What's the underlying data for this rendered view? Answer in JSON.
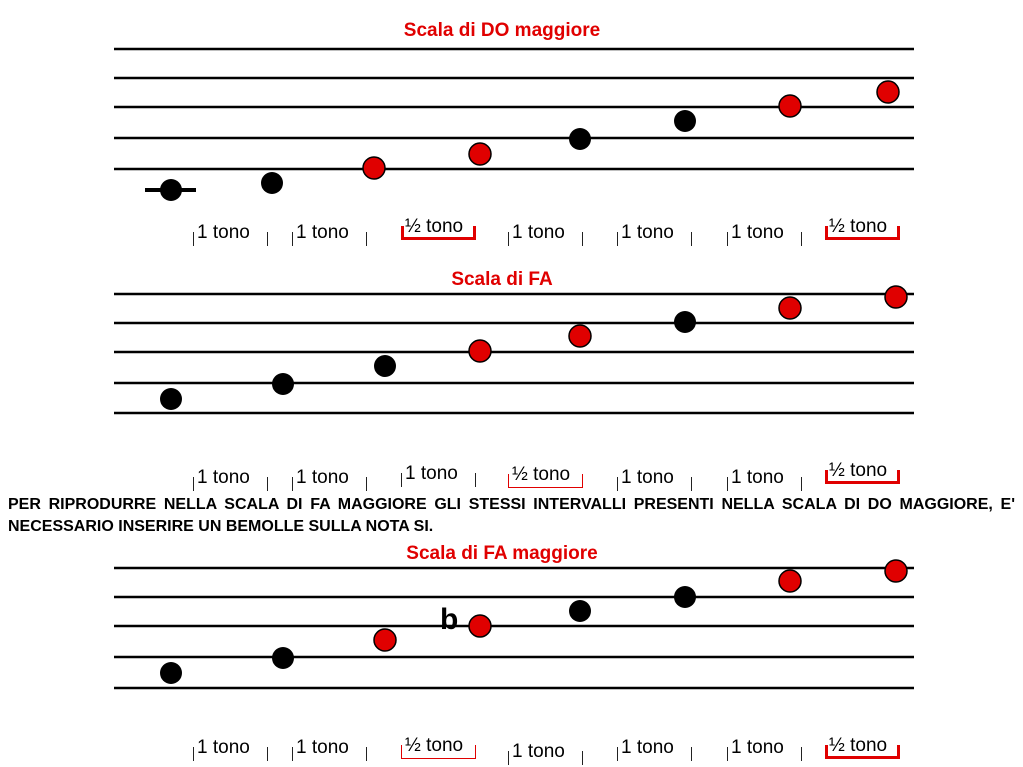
{
  "colors": {
    "accent": "#e00000",
    "note_black": "#000000",
    "note_red": "#e00000"
  },
  "sections": [
    {
      "title": "Scala di DO maggiore",
      "intervals": [
        "1 tono",
        "1 tono",
        "½ tono",
        "1 tono",
        "1 tono",
        "1 tono",
        "½ tono"
      ],
      "interval_kinds": [
        "whole",
        "whole",
        "half",
        "whole",
        "whole",
        "whole",
        "half"
      ]
    },
    {
      "title": "Scala di FA",
      "intervals": [
        "1 tono",
        "1 tono",
        "1 tono",
        "½ tono",
        "1 tono",
        "1 tono",
        "½ tono"
      ],
      "interval_kinds": [
        "whole",
        "whole",
        "whole",
        "half",
        "whole",
        "whole",
        "half"
      ]
    },
    {
      "title": "Scala di FA maggiore",
      "intervals": [
        "1 tono",
        "1 tono",
        "½ tono",
        "1 tono",
        "1 tono",
        "1 tono",
        "½ tono"
      ],
      "interval_kinds": [
        "whole",
        "whole",
        "half",
        "whole",
        "whole",
        "whole",
        "half"
      ]
    }
  ],
  "explanation": "PER RIPRODURRE NELLA SCALA DI FA MAGGIORE GLI STESSI INTERVALLI PRESENTI NELLA SCALA DI DO MAGGIORE, E' NECESSARIO INSERIRE UN BEMOLLE SULLA NOTA SI.",
  "flat_symbol": "b"
}
